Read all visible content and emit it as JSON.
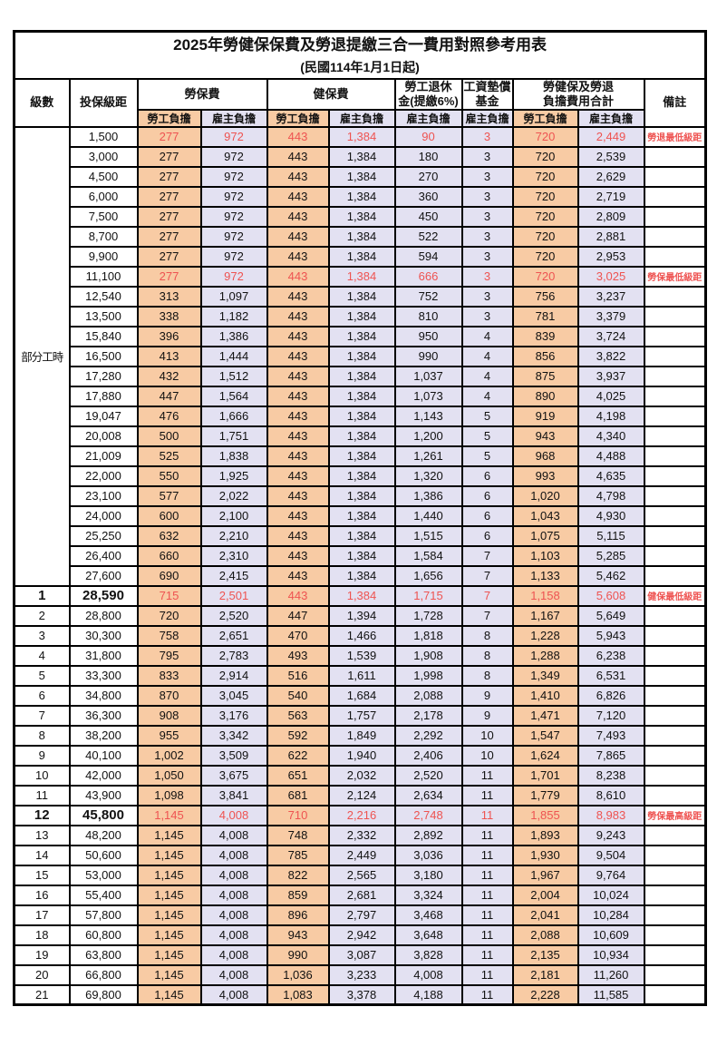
{
  "title": "2025年勞健保保費及勞退提繳三合一費用對照參考用表",
  "subtitle": "(民國114年1月1日起)",
  "colors": {
    "labor_bg": "#F8CBA4",
    "employer_bg": "#E3E1F2",
    "highlight_red": "#EE5351"
  },
  "header": {
    "level": "級數",
    "bracket": "投保級距",
    "labor_ins": "勞保費",
    "health_ins": "健保費",
    "pension_line1": "勞工退休",
    "pension_line2": "金(提繳6%)",
    "wage_fund_line1": "工資墊償",
    "wage_fund_line2": "基金",
    "total_line1": "勞健保及勞退",
    "total_line2": "負擔費用合計",
    "remark": "備註",
    "labor_share": "勞工負擔",
    "employer_share": "雇主負擔"
  },
  "part_time_label": "部分工時",
  "rows": [
    {
      "lv": "",
      "br": "1,500",
      "v": [
        "277",
        "972",
        "443",
        "1,384",
        "90",
        "3",
        "720",
        "2,449"
      ],
      "note": "勞退最低級距",
      "red": true,
      "big": false
    },
    {
      "lv": "",
      "br": "3,000",
      "v": [
        "277",
        "972",
        "443",
        "1,384",
        "180",
        "3",
        "720",
        "2,539"
      ],
      "note": "",
      "red": false,
      "big": false
    },
    {
      "lv": "",
      "br": "4,500",
      "v": [
        "277",
        "972",
        "443",
        "1,384",
        "270",
        "3",
        "720",
        "2,629"
      ],
      "note": "",
      "red": false,
      "big": false
    },
    {
      "lv": "",
      "br": "6,000",
      "v": [
        "277",
        "972",
        "443",
        "1,384",
        "360",
        "3",
        "720",
        "2,719"
      ],
      "note": "",
      "red": false,
      "big": false
    },
    {
      "lv": "",
      "br": "7,500",
      "v": [
        "277",
        "972",
        "443",
        "1,384",
        "450",
        "3",
        "720",
        "2,809"
      ],
      "note": "",
      "red": false,
      "big": false
    },
    {
      "lv": "",
      "br": "8,700",
      "v": [
        "277",
        "972",
        "443",
        "1,384",
        "522",
        "3",
        "720",
        "2,881"
      ],
      "note": "",
      "red": false,
      "big": false
    },
    {
      "lv": "",
      "br": "9,900",
      "v": [
        "277",
        "972",
        "443",
        "1,384",
        "594",
        "3",
        "720",
        "2,953"
      ],
      "note": "",
      "red": false,
      "big": false
    },
    {
      "lv": "",
      "br": "11,100",
      "v": [
        "277",
        "972",
        "443",
        "1,384",
        "666",
        "3",
        "720",
        "3,025"
      ],
      "note": "勞保最低級距",
      "red": true,
      "big": false
    },
    {
      "lv": "",
      "br": "12,540",
      "v": [
        "313",
        "1,097",
        "443",
        "1,384",
        "752",
        "3",
        "756",
        "3,237"
      ],
      "note": "",
      "red": false,
      "big": false
    },
    {
      "lv": "",
      "br": "13,500",
      "v": [
        "338",
        "1,182",
        "443",
        "1,384",
        "810",
        "3",
        "781",
        "3,379"
      ],
      "note": "",
      "red": false,
      "big": false
    },
    {
      "lv": "",
      "br": "15,840",
      "v": [
        "396",
        "1,386",
        "443",
        "1,384",
        "950",
        "4",
        "839",
        "3,724"
      ],
      "note": "",
      "red": false,
      "big": false
    },
    {
      "lv": "",
      "br": "16,500",
      "v": [
        "413",
        "1,444",
        "443",
        "1,384",
        "990",
        "4",
        "856",
        "3,822"
      ],
      "note": "",
      "red": false,
      "big": false
    },
    {
      "lv": "",
      "br": "17,280",
      "v": [
        "432",
        "1,512",
        "443",
        "1,384",
        "1,037",
        "4",
        "875",
        "3,937"
      ],
      "note": "",
      "red": false,
      "big": false
    },
    {
      "lv": "",
      "br": "17,880",
      "v": [
        "447",
        "1,564",
        "443",
        "1,384",
        "1,073",
        "4",
        "890",
        "4,025"
      ],
      "note": "",
      "red": false,
      "big": false
    },
    {
      "lv": "",
      "br": "19,047",
      "v": [
        "476",
        "1,666",
        "443",
        "1,384",
        "1,143",
        "5",
        "919",
        "4,198"
      ],
      "note": "",
      "red": false,
      "big": false
    },
    {
      "lv": "",
      "br": "20,008",
      "v": [
        "500",
        "1,751",
        "443",
        "1,384",
        "1,200",
        "5",
        "943",
        "4,340"
      ],
      "note": "",
      "red": false,
      "big": false
    },
    {
      "lv": "",
      "br": "21,009",
      "v": [
        "525",
        "1,838",
        "443",
        "1,384",
        "1,261",
        "5",
        "968",
        "4,488"
      ],
      "note": "",
      "red": false,
      "big": false
    },
    {
      "lv": "",
      "br": "22,000",
      "v": [
        "550",
        "1,925",
        "443",
        "1,384",
        "1,320",
        "6",
        "993",
        "4,635"
      ],
      "note": "",
      "red": false,
      "big": false
    },
    {
      "lv": "",
      "br": "23,100",
      "v": [
        "577",
        "2,022",
        "443",
        "1,384",
        "1,386",
        "6",
        "1,020",
        "4,798"
      ],
      "note": "",
      "red": false,
      "big": false
    },
    {
      "lv": "",
      "br": "24,000",
      "v": [
        "600",
        "2,100",
        "443",
        "1,384",
        "1,440",
        "6",
        "1,043",
        "4,930"
      ],
      "note": "",
      "red": false,
      "big": false
    },
    {
      "lv": "",
      "br": "25,250",
      "v": [
        "632",
        "2,210",
        "443",
        "1,384",
        "1,515",
        "6",
        "1,075",
        "5,115"
      ],
      "note": "",
      "red": false,
      "big": false
    },
    {
      "lv": "",
      "br": "26,400",
      "v": [
        "660",
        "2,310",
        "443",
        "1,384",
        "1,584",
        "7",
        "1,103",
        "5,285"
      ],
      "note": "",
      "red": false,
      "big": false
    },
    {
      "lv": "",
      "br": "27,600",
      "v": [
        "690",
        "2,415",
        "443",
        "1,384",
        "1,656",
        "7",
        "1,133",
        "5,462"
      ],
      "note": "",
      "red": false,
      "big": false
    },
    {
      "lv": "1",
      "br": "28,590",
      "v": [
        "715",
        "2,501",
        "443",
        "1,384",
        "1,715",
        "7",
        "1,158",
        "5,608"
      ],
      "note": "健保最低級距",
      "red": true,
      "big": true
    },
    {
      "lv": "2",
      "br": "28,800",
      "v": [
        "720",
        "2,520",
        "447",
        "1,394",
        "1,728",
        "7",
        "1,167",
        "5,649"
      ],
      "note": "",
      "red": false,
      "big": false
    },
    {
      "lv": "3",
      "br": "30,300",
      "v": [
        "758",
        "2,651",
        "470",
        "1,466",
        "1,818",
        "8",
        "1,228",
        "5,943"
      ],
      "note": "",
      "red": false,
      "big": false
    },
    {
      "lv": "4",
      "br": "31,800",
      "v": [
        "795",
        "2,783",
        "493",
        "1,539",
        "1,908",
        "8",
        "1,288",
        "6,238"
      ],
      "note": "",
      "red": false,
      "big": false
    },
    {
      "lv": "5",
      "br": "33,300",
      "v": [
        "833",
        "2,914",
        "516",
        "1,611",
        "1,998",
        "8",
        "1,349",
        "6,531"
      ],
      "note": "",
      "red": false,
      "big": false
    },
    {
      "lv": "6",
      "br": "34,800",
      "v": [
        "870",
        "3,045",
        "540",
        "1,684",
        "2,088",
        "9",
        "1,410",
        "6,826"
      ],
      "note": "",
      "red": false,
      "big": false
    },
    {
      "lv": "7",
      "br": "36,300",
      "v": [
        "908",
        "3,176",
        "563",
        "1,757",
        "2,178",
        "9",
        "1,471",
        "7,120"
      ],
      "note": "",
      "red": false,
      "big": false
    },
    {
      "lv": "8",
      "br": "38,200",
      "v": [
        "955",
        "3,342",
        "592",
        "1,849",
        "2,292",
        "10",
        "1,547",
        "7,493"
      ],
      "note": "",
      "red": false,
      "big": false
    },
    {
      "lv": "9",
      "br": "40,100",
      "v": [
        "1,002",
        "3,509",
        "622",
        "1,940",
        "2,406",
        "10",
        "1,624",
        "7,865"
      ],
      "note": "",
      "red": false,
      "big": false
    },
    {
      "lv": "10",
      "br": "42,000",
      "v": [
        "1,050",
        "3,675",
        "651",
        "2,032",
        "2,520",
        "11",
        "1,701",
        "8,238"
      ],
      "note": "",
      "red": false,
      "big": false
    },
    {
      "lv": "11",
      "br": "43,900",
      "v": [
        "1,098",
        "3,841",
        "681",
        "2,124",
        "2,634",
        "11",
        "1,779",
        "8,610"
      ],
      "note": "",
      "red": false,
      "big": false
    },
    {
      "lv": "12",
      "br": "45,800",
      "v": [
        "1,145",
        "4,008",
        "710",
        "2,216",
        "2,748",
        "11",
        "1,855",
        "8,983"
      ],
      "note": "勞保最高級距",
      "red": true,
      "big": true
    },
    {
      "lv": "13",
      "br": "48,200",
      "v": [
        "1,145",
        "4,008",
        "748",
        "2,332",
        "2,892",
        "11",
        "1,893",
        "9,243"
      ],
      "note": "",
      "red": false,
      "big": false
    },
    {
      "lv": "14",
      "br": "50,600",
      "v": [
        "1,145",
        "4,008",
        "785",
        "2,449",
        "3,036",
        "11",
        "1,930",
        "9,504"
      ],
      "note": "",
      "red": false,
      "big": false
    },
    {
      "lv": "15",
      "br": "53,000",
      "v": [
        "1,145",
        "4,008",
        "822",
        "2,565",
        "3,180",
        "11",
        "1,967",
        "9,764"
      ],
      "note": "",
      "red": false,
      "big": false
    },
    {
      "lv": "16",
      "br": "55,400",
      "v": [
        "1,145",
        "4,008",
        "859",
        "2,681",
        "3,324",
        "11",
        "2,004",
        "10,024"
      ],
      "note": "",
      "red": false,
      "big": false
    },
    {
      "lv": "17",
      "br": "57,800",
      "v": [
        "1,145",
        "4,008",
        "896",
        "2,797",
        "3,468",
        "11",
        "2,041",
        "10,284"
      ],
      "note": "",
      "red": false,
      "big": false
    },
    {
      "lv": "18",
      "br": "60,800",
      "v": [
        "1,145",
        "4,008",
        "943",
        "2,942",
        "3,648",
        "11",
        "2,088",
        "10,609"
      ],
      "note": "",
      "red": false,
      "big": false
    },
    {
      "lv": "19",
      "br": "63,800",
      "v": [
        "1,145",
        "4,008",
        "990",
        "3,087",
        "3,828",
        "11",
        "2,135",
        "10,934"
      ],
      "note": "",
      "red": false,
      "big": false
    },
    {
      "lv": "20",
      "br": "66,800",
      "v": [
        "1,145",
        "4,008",
        "1,036",
        "3,233",
        "4,008",
        "11",
        "2,181",
        "11,260"
      ],
      "note": "",
      "red": false,
      "big": false
    },
    {
      "lv": "21",
      "br": "69,800",
      "v": [
        "1,145",
        "4,008",
        "1,083",
        "3,378",
        "4,188",
        "11",
        "2,228",
        "11,585"
      ],
      "note": "",
      "red": false,
      "big": false
    }
  ]
}
